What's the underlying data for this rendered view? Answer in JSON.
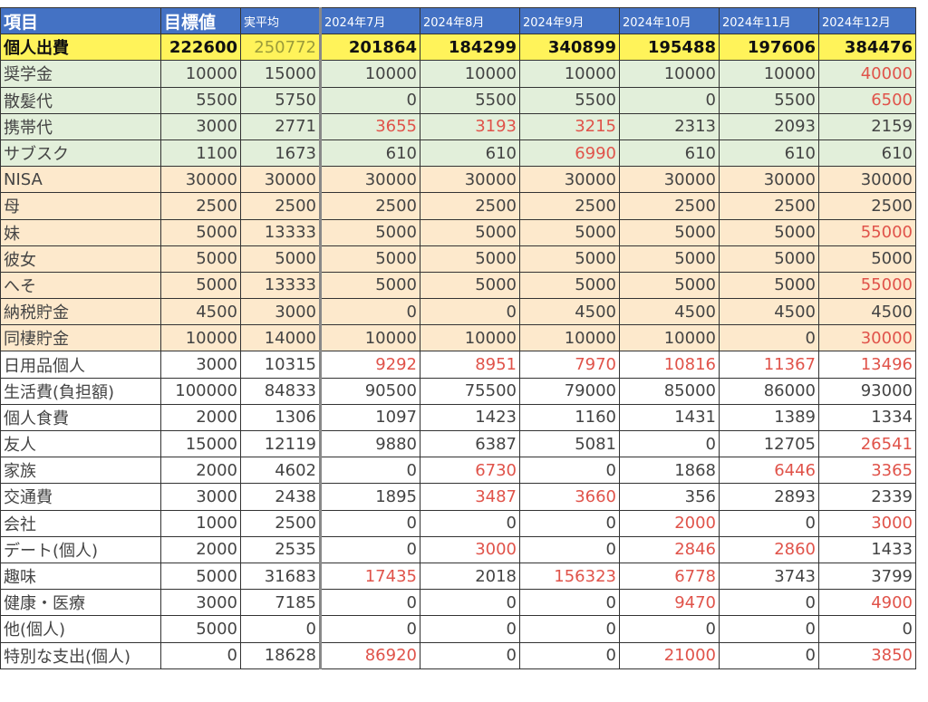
{
  "table": {
    "header": [
      "項目",
      "目標値",
      "実平均",
      "2024年7月",
      "2024年8月",
      "2024年9月",
      "2024年10月",
      "2024年11月",
      "2024年12月"
    ],
    "total": [
      "個人出費",
      222600,
      250772,
      201864,
      184299,
      340899,
      195488,
      197606,
      384476
    ],
    "rows": [
      [
        "奨学金",
        10000,
        15000,
        10000,
        10000,
        10000,
        10000,
        10000,
        40000
      ],
      [
        "散髪代",
        5500,
        5750,
        0,
        5500,
        5500,
        0,
        5500,
        6500
      ],
      [
        "携帯代",
        3000,
        2771,
        3655,
        3193,
        3215,
        2313,
        2093,
        2159
      ],
      [
        "サブスク",
        1100,
        1673,
        610,
        610,
        6990,
        610,
        610,
        610
      ],
      [
        "NISA",
        30000,
        30000,
        30000,
        30000,
        30000,
        30000,
        30000,
        30000
      ],
      [
        "母",
        2500,
        2500,
        2500,
        2500,
        2500,
        2500,
        2500,
        2500
      ],
      [
        "妹",
        5000,
        13333,
        5000,
        5000,
        5000,
        5000,
        5000,
        55000
      ],
      [
        "彼女",
        5000,
        5000,
        5000,
        5000,
        5000,
        5000,
        5000,
        5000
      ],
      [
        "へそ",
        5000,
        13333,
        5000,
        5000,
        5000,
        5000,
        5000,
        55000
      ],
      [
        "納税貯金",
        4500,
        3000,
        0,
        0,
        4500,
        4500,
        4500,
        4500
      ],
      [
        "同棲貯金",
        10000,
        14000,
        10000,
        10000,
        10000,
        10000,
        0,
        30000
      ],
      [
        "日用品個人",
        3000,
        10315,
        9292,
        8951,
        7970,
        10816,
        11367,
        13496
      ],
      [
        "生活費(負担額)",
        100000,
        84833,
        90500,
        75500,
        79000,
        85000,
        86000,
        93000
      ],
      [
        "個人食費",
        2000,
        1306,
        1097,
        1423,
        1160,
        1431,
        1389,
        1334
      ],
      [
        "友人",
        15000,
        12119,
        9880,
        6387,
        5081,
        0,
        12705,
        26541
      ],
      [
        "家族",
        2000,
        4602,
        0,
        6730,
        0,
        1868,
        6446,
        3365
      ],
      [
        "交通費",
        3000,
        2438,
        1895,
        3487,
        3660,
        356,
        2893,
        2339
      ],
      [
        "会社",
        1000,
        2500,
        0,
        0,
        0,
        2000,
        0,
        3000
      ],
      [
        "デート(個人)",
        2000,
        2535,
        0,
        3000,
        0,
        2846,
        2860,
        1433
      ],
      [
        "趣味",
        5000,
        31683,
        17435,
        2018,
        156323,
        6778,
        3743,
        3799
      ],
      [
        "健康・医療",
        3000,
        7185,
        0,
        0,
        0,
        9470,
        0,
        4900
      ],
      [
        "他(個人)",
        5000,
        0,
        0,
        0,
        0,
        0,
        0,
        0
      ],
      [
        "特別な支出(個人)",
        0,
        18628,
        86920,
        0,
        0,
        21000,
        0,
        3850
      ]
    ]
  }
}
